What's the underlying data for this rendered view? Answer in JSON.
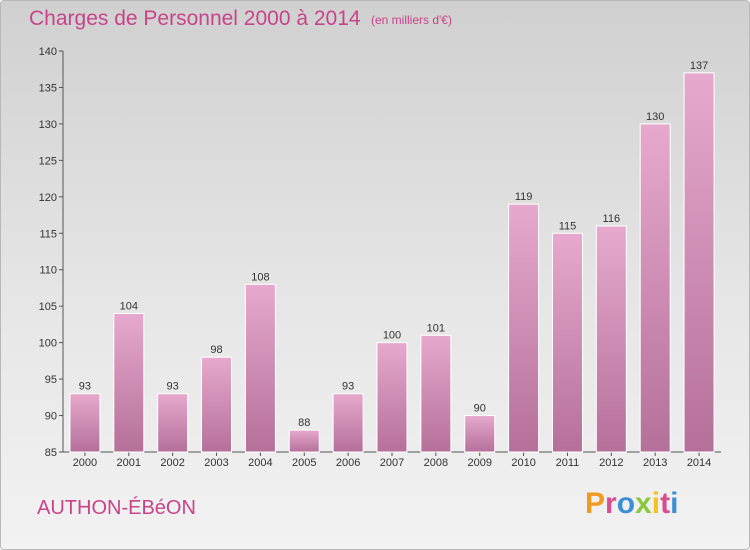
{
  "header": {
    "title": "Charges de Personnel 2000 à 2014",
    "subtitle": "(en milliers d'€)"
  },
  "footer": {
    "commune": "AUTHON-ÉBéON",
    "logo_text": "Proxiti",
    "logo_colors": [
      "#f29a1f",
      "#d94c8f",
      "#3a8fd6",
      "#8cc63e",
      "#f2c21f",
      "#d94c8f",
      "#3a8fd6"
    ]
  },
  "colors": {
    "bar_top": "#e6a9cd",
    "bar_bottom": "#b5709a",
    "text_accent": "#c8448a"
  },
  "chart_data": {
    "type": "bar",
    "title": "Charges de Personnel 2000 à 2014",
    "subtitle": "(en milliers d'€)",
    "categories": [
      "2000",
      "2001",
      "2002",
      "2003",
      "2004",
      "2005",
      "2006",
      "2007",
      "2008",
      "2009",
      "2010",
      "2011",
      "2012",
      "2013",
      "2014"
    ],
    "values": [
      93,
      104,
      93,
      98,
      108,
      88,
      93,
      100,
      101,
      90,
      119,
      115,
      116,
      130,
      137
    ],
    "data_labels": [
      "93",
      "104",
      "93",
      "98",
      "108",
      "88",
      "93",
      "100",
      "101",
      "90",
      "119",
      "115",
      "116",
      "130",
      "137"
    ],
    "ylim": [
      85,
      140
    ],
    "yticks": [
      85,
      90,
      95,
      100,
      105,
      110,
      115,
      120,
      125,
      130,
      135,
      140
    ],
    "grid": false,
    "xlabel": "",
    "ylabel": ""
  }
}
